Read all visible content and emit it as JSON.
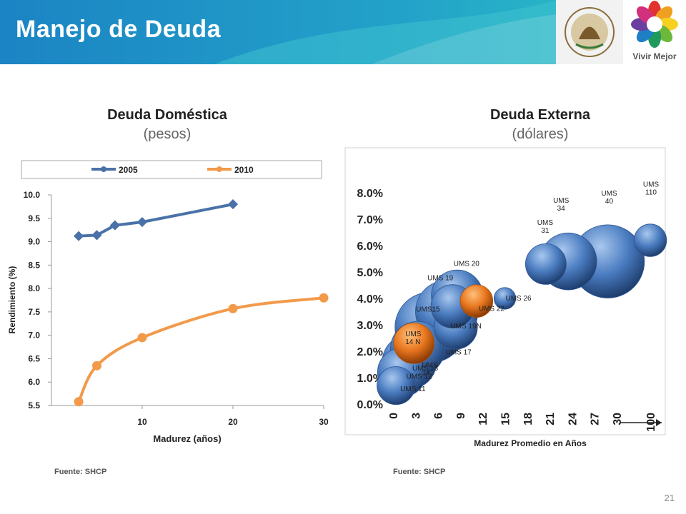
{
  "header": {
    "title": "Manejo de Deuda",
    "logo_label": "Vivir Mejor"
  },
  "left": {
    "title": "Deuda Doméstica",
    "subtitle": "(pesos)",
    "source": "Fuente:  SHCP"
  },
  "right": {
    "title": "Deuda Externa",
    "subtitle": "(dólares)",
    "source": "Fuente:  SHCP"
  },
  "page_number": "21",
  "colors": {
    "series_2005": "#4a72a8",
    "series_2010": "#f29a4a",
    "bubble_blue": "#4a7cc0",
    "bubble_orange": "#e8761e",
    "banner": "#1a8fc7"
  },
  "chart_data": [
    {
      "type": "line",
      "title": "Deuda Doméstica",
      "xlabel": "Madurez (años)",
      "ylabel": "Rendimiento (%)",
      "xlim": [
        0,
        30
      ],
      "ylim": [
        5.5,
        10.0
      ],
      "xticks": [
        "10",
        "20",
        "30"
      ],
      "yticks": [
        "5.5",
        "6.0",
        "6.5",
        "7.0",
        "7.5",
        "8.0",
        "8.5",
        "9.0",
        "9.5",
        "10.0"
      ],
      "legend": "top",
      "series": [
        {
          "name": "2005",
          "x": [
            3,
            5,
            7,
            10,
            20
          ],
          "y": [
            9.12,
            9.14,
            9.35,
            9.42,
            9.8
          ]
        },
        {
          "name": "2010",
          "x": [
            3,
            5,
            10,
            20,
            30
          ],
          "y": [
            5.58,
            6.35,
            6.95,
            7.57,
            7.8
          ]
        }
      ]
    },
    {
      "type": "scatter",
      "title": "Deuda Externa",
      "xlabel": "Madurez Promedio en Años",
      "ylim": [
        0,
        8
      ],
      "xticks": [
        "0",
        "3",
        "6",
        "9",
        "12",
        "15",
        "18",
        "21",
        "24",
        "27",
        "30",
        "100"
      ],
      "yticks": [
        "0.0%",
        "1.0%",
        "2.0%",
        "3.0%",
        "4.0%",
        "5.0%",
        "6.0%",
        "7.0%",
        "8.0%"
      ],
      "bubbles": [
        {
          "label": "UMS 11",
          "x": 0.4,
          "y": 0.7,
          "size": 0.7,
          "color": "blue"
        },
        {
          "label": "UMS 12",
          "x": 1.2,
          "y": 1.2,
          "size": 0.9,
          "color": "blue"
        },
        {
          "label": "UMS 13",
          "x": 2.2,
          "y": 1.6,
          "size": 1.0,
          "color": "blue"
        },
        {
          "label": "UMS 14",
          "x": 3.3,
          "y": 2.1,
          "size": 1.0,
          "color": "blue"
        },
        {
          "label": "UMS 14 N",
          "x": 2.8,
          "y": 2.3,
          "size": 0.75,
          "color": "orange"
        },
        {
          "label": "UMS15",
          "x": 5.0,
          "y": 2.9,
          "size": 1.3,
          "color": "blue"
        },
        {
          "label": "UMS 17",
          "x": 8.4,
          "y": 2.9,
          "size": 0.8,
          "color": "blue"
        },
        {
          "label": "UMS 19",
          "x": 7.2,
          "y": 3.5,
          "size": 1.15,
          "color": "blue"
        },
        {
          "label": "UMS 19N",
          "x": 8.0,
          "y": 3.7,
          "size": 0.8,
          "color": "blue"
        },
        {
          "label": "UMS 20",
          "x": 8.6,
          "y": 4.1,
          "size": 0.95,
          "color": "blue"
        },
        {
          "label": "UMS 22",
          "x": 11.2,
          "y": 3.9,
          "size": 0.6,
          "color": "orange"
        },
        {
          "label": "UMS 26",
          "x": 15.0,
          "y": 4.0,
          "size": 0.4,
          "color": "blue"
        },
        {
          "label": "UMS 31",
          "x": 20.5,
          "y": 5.3,
          "size": 0.75,
          "color": "blue"
        },
        {
          "label": "UMS 34",
          "x": 23.5,
          "y": 5.4,
          "size": 1.05,
          "color": "blue"
        },
        {
          "label": "UMS 40",
          "x": 28.8,
          "y": 5.4,
          "size": 1.35,
          "color": "blue"
        },
        {
          "label": "UMS 110",
          "x": 100,
          "y": 6.2,
          "size": 0.6,
          "color": "blue"
        }
      ]
    }
  ]
}
